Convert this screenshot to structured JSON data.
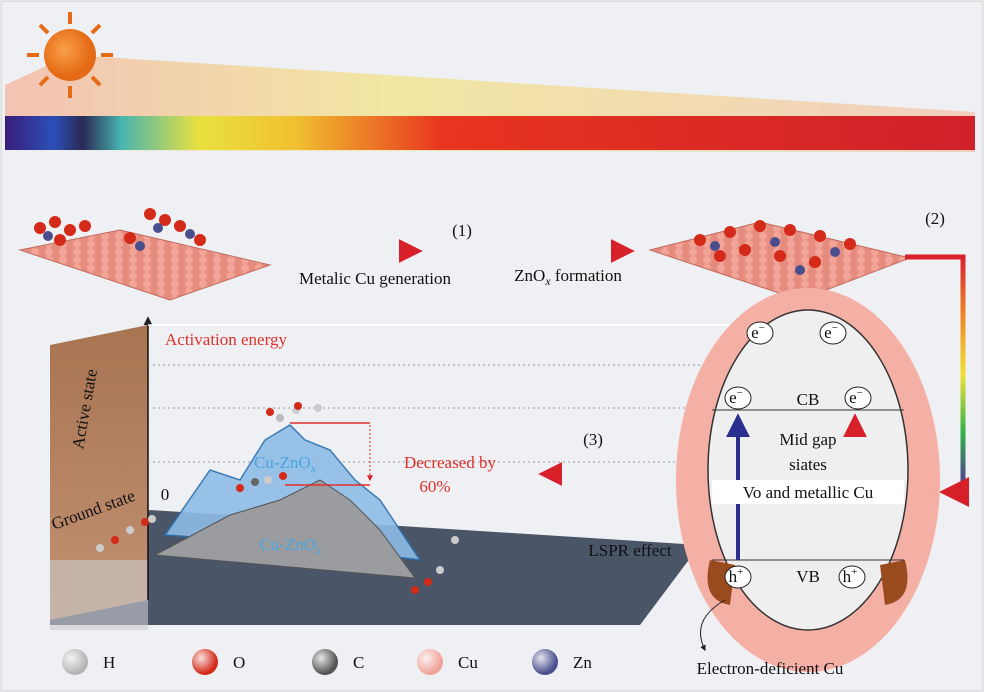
{
  "step_labels": [
    "(1)",
    "(2)",
    "(3)"
  ],
  "metal_cu": "Metalic Cu generation",
  "zno_formation": {
    "main": "ZnO",
    "sub": "x",
    "rest": " formation"
  },
  "energy": {
    "title": "Activation energy",
    "active": "Active state",
    "ground": "Ground state",
    "zero": "0",
    "upper": {
      "main": "Cu-ZnO",
      "sub": "x"
    },
    "lower": {
      "main": "Cu-ZnO",
      "sub": "z"
    },
    "decrease": [
      "Decreased by",
      "60%"
    ]
  },
  "band": {
    "electrons": [
      {
        "main": "e",
        "sup": "−"
      },
      {
        "main": "e",
        "sup": "−"
      },
      {
        "main": "e",
        "sup": "−"
      },
      {
        "main": "e",
        "sup": "−"
      }
    ],
    "holes": [
      {
        "main": "h",
        "sup": "+"
      },
      {
        "main": "h",
        "sup": "+"
      }
    ],
    "cb": "CB",
    "vb": "VB",
    "mid_gap": [
      "Mid gap",
      "siates"
    ],
    "vo": "Vo and metallic Cu"
  },
  "lspr": "LSPR effect",
  "electron_deficient": "Electron-deficient Cu",
  "legend": [
    {
      "label": "H",
      "color": "#b5b5b5"
    },
    {
      "label": "O",
      "color": "#d42a1a"
    },
    {
      "label": "C",
      "color": "#555555"
    },
    {
      "label": "Cu",
      "color": "#f0a39a"
    },
    {
      "label": "Zn",
      "color": "#4a4e8c"
    }
  ]
}
